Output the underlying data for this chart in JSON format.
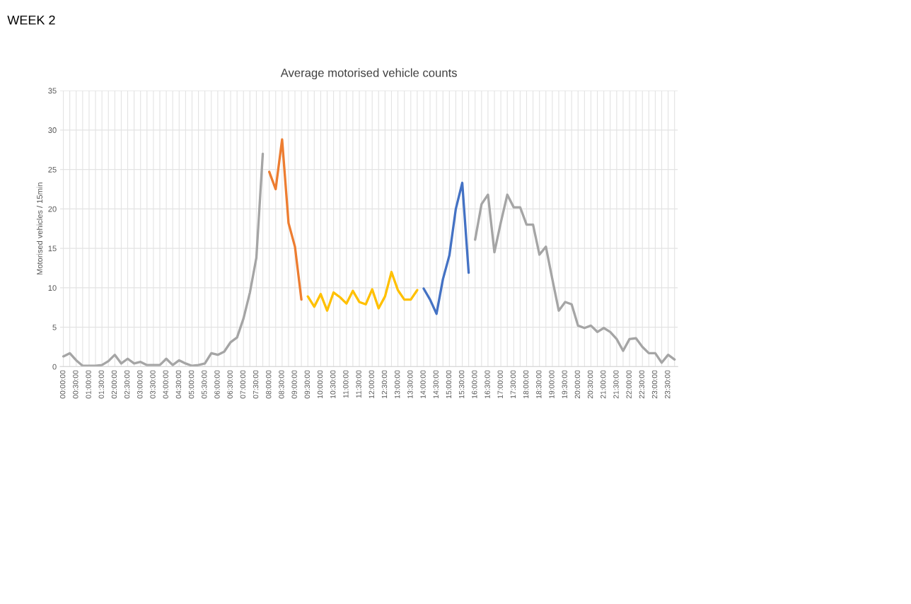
{
  "chart_data": {
    "type": "line",
    "title": "Average motorised vehicle counts",
    "ylabel": "Motorised vehicles / 15min",
    "annotations": [
      "WEEK 2"
    ],
    "categories": [
      "00:00:00",
      null,
      "00:30:00",
      null,
      "01:00:00",
      null,
      "01:30:00",
      null,
      "02:00:00",
      null,
      "02:30:00",
      null,
      "03:00:00",
      null,
      "03:30:00",
      null,
      "04:00:00",
      null,
      "04:30:00",
      null,
      "05:00:00",
      null,
      "05:30:00",
      null,
      "06:00:00",
      null,
      "06:30:00",
      null,
      "07:00:00",
      null,
      "07:30:00",
      null,
      "08:00:00",
      null,
      "08:30:00",
      null,
      "09:00:00",
      null,
      "09:30:00",
      null,
      "10:00:00",
      null,
      "10:30:00",
      null,
      "11:00:00",
      null,
      "11:30:00",
      null,
      "12:00:00",
      null,
      "12:30:00",
      null,
      "13:00:00",
      null,
      "13:30:00",
      null,
      "14:00:00",
      null,
      "14:30:00",
      null,
      "15:00:00",
      null,
      "15:30:00",
      null,
      "16:00:00",
      null,
      "16:30:00",
      null,
      "17:00:00",
      null,
      "17:30:00",
      null,
      "18:00:00",
      null,
      "18:30:00",
      null,
      "19:00:00",
      null,
      "19:30:00",
      null,
      "20:00:00",
      null,
      "20:30:00",
      null,
      "21:00:00",
      null,
      "21:30:00",
      null,
      "22:00:00",
      null,
      "22:30:00",
      null,
      "23:00:00",
      null,
      "23:30:00",
      null
    ],
    "series": [
      {
        "color": "#a5a5a5",
        "values": [
          1.3,
          1.7,
          0.8,
          0.1,
          0.1,
          0.1,
          0.2,
          0.7,
          1.5,
          0.4,
          1.0,
          0.4,
          0.6,
          0.2,
          0.2,
          0.2,
          1.0,
          0.2,
          0.8,
          0.4,
          0.1,
          0.2,
          0.4,
          1.7,
          1.5,
          1.9,
          3.1,
          3.7,
          6.1,
          9.4,
          13.8,
          27.0,
          null,
          null,
          null,
          null,
          null,
          null,
          null,
          null,
          null,
          null,
          null,
          null,
          null,
          null,
          null,
          null,
          null,
          null,
          null,
          null,
          null,
          null,
          null,
          null,
          null,
          null,
          null,
          null,
          null,
          null,
          null,
          null,
          null,
          null,
          null,
          null,
          null,
          null,
          null,
          null,
          null,
          null,
          null,
          null,
          null,
          null,
          null,
          null,
          null,
          null,
          null,
          null,
          null,
          null,
          null,
          null,
          null,
          null,
          null,
          null,
          null,
          null,
          null,
          null
        ]
      },
      {
        "color": "#ed7d31",
        "values": [
          null,
          null,
          null,
          null,
          null,
          null,
          null,
          null,
          null,
          null,
          null,
          null,
          null,
          null,
          null,
          null,
          null,
          null,
          null,
          null,
          null,
          null,
          null,
          null,
          null,
          null,
          null,
          null,
          null,
          null,
          null,
          null,
          24.7,
          22.5,
          28.8,
          18.2,
          15.2,
          8.5,
          null,
          null,
          null,
          null,
          null,
          null,
          null,
          null,
          null,
          null,
          null,
          null,
          null,
          null,
          null,
          null,
          null,
          null,
          null,
          null,
          null,
          null,
          null,
          null,
          null,
          null,
          null,
          null,
          null,
          null,
          null,
          null,
          null,
          null,
          null,
          null,
          null,
          null,
          null,
          null,
          null,
          null,
          null,
          null,
          null,
          null,
          null,
          null,
          null,
          null,
          null,
          null,
          null,
          null,
          null,
          null,
          null,
          null
        ]
      },
      {
        "color": "#ffc000",
        "values": [
          null,
          null,
          null,
          null,
          null,
          null,
          null,
          null,
          null,
          null,
          null,
          null,
          null,
          null,
          null,
          null,
          null,
          null,
          null,
          null,
          null,
          null,
          null,
          null,
          null,
          null,
          null,
          null,
          null,
          null,
          null,
          null,
          null,
          null,
          null,
          null,
          null,
          null,
          8.9,
          7.6,
          9.2,
          7.1,
          9.4,
          8.8,
          8.0,
          9.6,
          8.2,
          7.9,
          9.8,
          7.4,
          8.9,
          12.0,
          9.7,
          8.5,
          8.5,
          9.7,
          null,
          null,
          null,
          null,
          null,
          null,
          null,
          null,
          null,
          null,
          null,
          null,
          null,
          null,
          null,
          null,
          null,
          null,
          null,
          null,
          null,
          null,
          null,
          null,
          null,
          null,
          null,
          null,
          null,
          null,
          null,
          null,
          null,
          null,
          null,
          null,
          null,
          null,
          null,
          null
        ]
      },
      {
        "color": "#4472c4",
        "values": [
          null,
          null,
          null,
          null,
          null,
          null,
          null,
          null,
          null,
          null,
          null,
          null,
          null,
          null,
          null,
          null,
          null,
          null,
          null,
          null,
          null,
          null,
          null,
          null,
          null,
          null,
          null,
          null,
          null,
          null,
          null,
          null,
          null,
          null,
          null,
          null,
          null,
          null,
          null,
          null,
          null,
          null,
          null,
          null,
          null,
          null,
          null,
          null,
          null,
          null,
          null,
          null,
          null,
          null,
          null,
          null,
          9.9,
          8.5,
          6.7,
          11.1,
          14.1,
          20.0,
          23.3,
          11.9,
          null,
          null,
          null,
          null,
          null,
          null,
          null,
          null,
          null,
          null,
          null,
          null,
          null,
          null,
          null,
          null,
          null,
          null,
          null,
          null,
          null,
          null,
          null,
          null,
          null,
          null,
          null,
          null,
          null,
          null,
          null,
          null
        ]
      },
      {
        "color": "#a5a5a5",
        "values": [
          null,
          null,
          null,
          null,
          null,
          null,
          null,
          null,
          null,
          null,
          null,
          null,
          null,
          null,
          null,
          null,
          null,
          null,
          null,
          null,
          null,
          null,
          null,
          null,
          null,
          null,
          null,
          null,
          null,
          null,
          null,
          null,
          null,
          null,
          null,
          null,
          null,
          null,
          null,
          null,
          null,
          null,
          null,
          null,
          null,
          null,
          null,
          null,
          null,
          null,
          null,
          null,
          null,
          null,
          null,
          null,
          null,
          null,
          null,
          null,
          null,
          null,
          null,
          null,
          16.1,
          20.6,
          21.8,
          14.5,
          18.3,
          21.8,
          20.2,
          20.2,
          18.0,
          18.0,
          14.2,
          15.2,
          11.1,
          7.1,
          8.2,
          7.9,
          5.2,
          4.9,
          5.2,
          4.4,
          4.9,
          4.4,
          3.5,
          2.0,
          3.5,
          3.6,
          2.5,
          1.7,
          1.7,
          0.5,
          1.5,
          0.9
        ]
      }
    ],
    "ylim": [
      0,
      35
    ],
    "yticks": [
      0,
      5,
      10,
      15,
      20,
      25,
      30,
      35
    ],
    "grid": true,
    "marker": "none",
    "line_style": "solid"
  }
}
